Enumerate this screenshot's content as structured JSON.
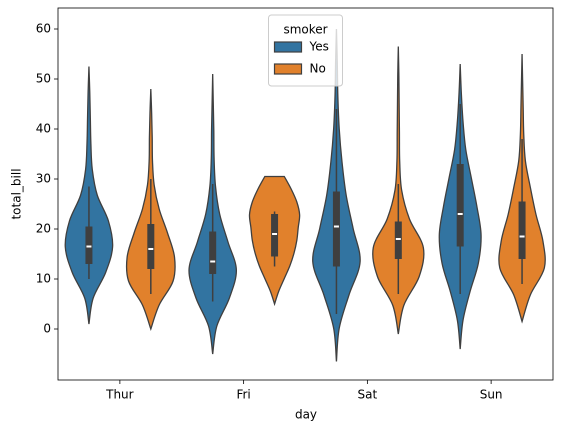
{
  "chart_data": {
    "type": "violin",
    "xlabel": "day",
    "ylabel": "total_bill",
    "categories": [
      "Thur",
      "Fri",
      "Sat",
      "Sun"
    ],
    "ylim": [
      -10.2,
      64.2
    ],
    "yticks": [
      0,
      10,
      20,
      30,
      40,
      50,
      60
    ],
    "legend_title": "smoker",
    "legend_loc": "upper center",
    "series": [
      {
        "name": "Yes",
        "color": "#3274a1",
        "violins": [
          {
            "min": 1,
            "max": 52.5,
            "q1": 13,
            "median": 16.5,
            "q3": 20.5,
            "whisker_low": 10,
            "whisker_high": 28.5,
            "density": [
              0,
              0.15,
              0.6,
              0.85,
              0.7,
              0.3,
              0.12,
              0.07,
              0.05,
              0.03,
              0
            ]
          },
          {
            "min": -5,
            "max": 51,
            "q1": 11,
            "median": 13.5,
            "q3": 19.5,
            "whisker_low": 5.5,
            "whisker_high": 29,
            "density": [
              0,
              0.15,
              0.6,
              0.85,
              0.55,
              0.25,
              0.1,
              0.05,
              0.04,
              0.02,
              0
            ]
          },
          {
            "min": -6.5,
            "max": 60,
            "q1": 12.5,
            "median": 20.5,
            "q3": 27.5,
            "whisker_low": 3,
            "whisker_high": 44,
            "density": [
              0,
              0.1,
              0.45,
              0.85,
              0.6,
              0.35,
              0.2,
              0.1,
              0.05,
              0.03,
              0
            ]
          },
          {
            "min": -4,
            "max": 53,
            "q1": 16.5,
            "median": 23,
            "q3": 33,
            "whisker_low": 7,
            "whisker_high": 45,
            "density": [
              0,
              0.1,
              0.35,
              0.65,
              0.75,
              0.6,
              0.4,
              0.2,
              0.1,
              0.04,
              0
            ]
          }
        ]
      },
      {
        "name": "No",
        "color": "#e1812c",
        "violins": [
          {
            "min": 0,
            "max": 48,
            "q1": 12,
            "median": 16,
            "q3": 21,
            "whisker_low": 7,
            "whisker_high": 30,
            "density": [
              0,
              0.3,
              0.8,
              0.85,
              0.6,
              0.3,
              0.12,
              0.06,
              0.05,
              0.03,
              0
            ]
          },
          {
            "min": 5,
            "max": 30.5,
            "q1": 14.5,
            "median": 19,
            "q3": 23,
            "whisker_low": 12.5,
            "whisker_high": 23.5,
            "density": [
              0,
              0.15,
              0.35,
              0.55,
              0.7,
              0.8,
              0.85,
              0.9,
              0.8,
              0.6,
              0.35
            ]
          },
          {
            "min": -1,
            "max": 56.5,
            "q1": 14,
            "median": 18,
            "q3": 21.5,
            "whisker_low": 7,
            "whisker_high": 29,
            "density": [
              0,
              0.2,
              0.75,
              0.9,
              0.4,
              0.12,
              0.05,
              0.04,
              0.03,
              0.02,
              0
            ]
          },
          {
            "min": 1.5,
            "max": 55,
            "q1": 14,
            "median": 18.5,
            "q3": 25.5,
            "whisker_low": 9,
            "whisker_high": 38,
            "density": [
              0,
              0.3,
              0.8,
              0.75,
              0.5,
              0.3,
              0.12,
              0.06,
              0.04,
              0.02,
              0
            ]
          }
        ]
      }
    ]
  }
}
